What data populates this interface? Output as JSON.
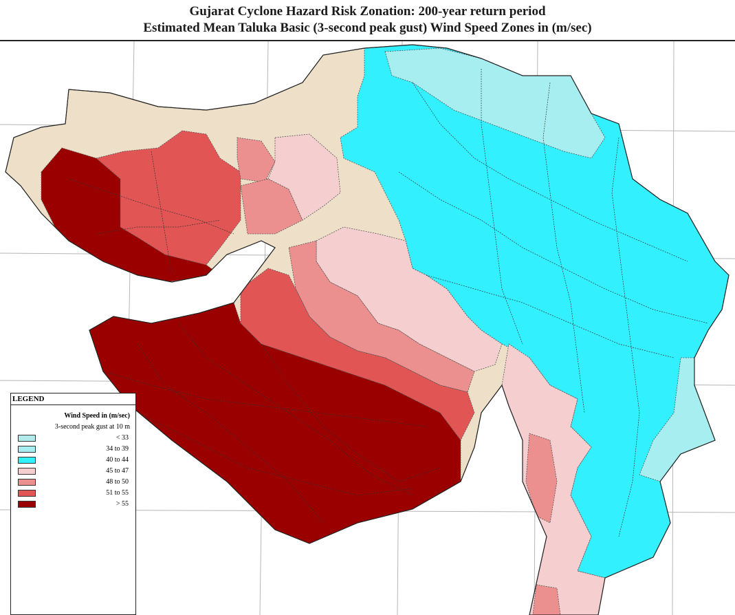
{
  "title": {
    "line1": "Gujarat Cyclone Hazard Risk Zonation: 200-year return period",
    "line2": "Estimated Mean Taluka Basic (3-second peak gust) Wind Speed Zones in (m/sec)"
  },
  "legend": {
    "title": "LEGEND",
    "heading": "Wind Speed in (m/sec)",
    "subheading": "3-second peak gust at 10 m",
    "classes": [
      {
        "label": "< 33",
        "color": "#b2ebeb"
      },
      {
        "label": "34 to 39",
        "color": "#a6eef0"
      },
      {
        "label": "40 to 44",
        "color": "#33f0ff"
      },
      {
        "label": "45 to 47",
        "color": "#f5cfcf"
      },
      {
        "label": "48 to 50",
        "color": "#ec8f8f"
      },
      {
        "label": "51 to 55",
        "color": "#e25555"
      },
      {
        "label": "> 55",
        "color": "#9b0000"
      }
    ]
  },
  "colors": {
    "land_outside": "#eedfc8",
    "sea": "#ffffff",
    "grid": "#b5b5b5",
    "boundary": "#444444"
  }
}
